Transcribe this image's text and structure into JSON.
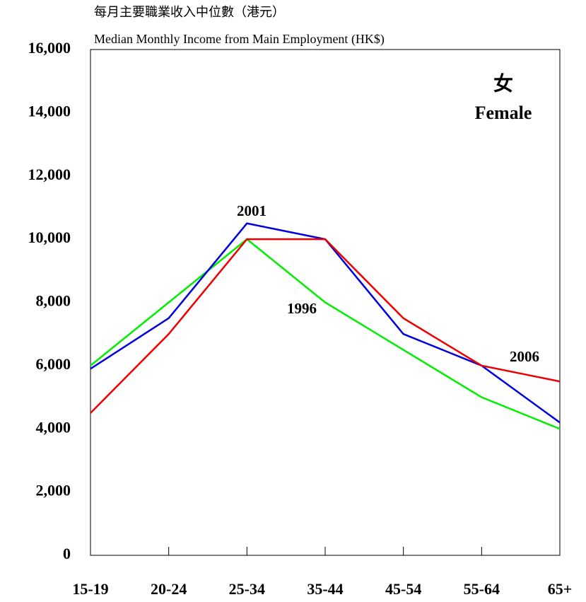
{
  "chart_data": {
    "type": "line",
    "title": "每月主要職業收入中位數（港元）",
    "subtitle": "Median Monthly Income from Main Employment (HK$)",
    "annotations": [
      "女",
      "Female"
    ],
    "categories": [
      "15-19",
      "20-24",
      "25-34",
      "35-44",
      "45-54",
      "55-64",
      "65+"
    ],
    "series": [
      {
        "name": "1996",
        "color": "#00ee00",
        "values": [
          6000,
          8000,
          10000,
          8000,
          6500,
          5000,
          4000
        ]
      },
      {
        "name": "2001",
        "color": "#0000dd",
        "values": [
          5900,
          7500,
          10500,
          10000,
          7000,
          6000,
          4200
        ]
      },
      {
        "name": "2006",
        "color": "#ee0000",
        "values": [
          4500,
          7000,
          10000,
          10000,
          7500,
          6000,
          5500
        ]
      }
    ],
    "ylim": [
      0,
      16000
    ],
    "yticks": [
      0,
      {
        "value": 2000,
        "label": "2,000"
      },
      {
        "value": 4000,
        "label": "4,000"
      },
      {
        "value": 6000,
        "label": "6,000"
      },
      {
        "value": 8000,
        "label": "8,000"
      },
      {
        "value": 10000,
        "label": "10,000"
      },
      {
        "value": 12000,
        "label": "12,000"
      },
      {
        "value": 14000,
        "label": "14,000"
      },
      {
        "value": 16000,
        "label": "16,000"
      }
    ],
    "grid": false
  }
}
